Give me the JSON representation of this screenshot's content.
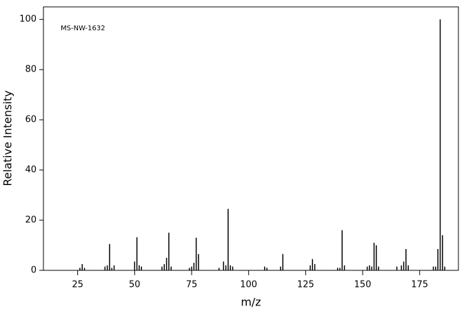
{
  "chart_data": {
    "type": "bar",
    "annotation": "MS-NW-1632",
    "xlabel": "m/z",
    "ylabel": "Relative Intensity",
    "x": [
      26,
      27,
      28,
      37,
      38,
      39,
      40,
      41,
      50,
      51,
      52,
      53,
      62,
      63,
      64,
      65,
      66,
      74,
      75,
      76,
      77,
      78,
      87,
      89,
      90,
      91,
      92,
      93,
      107,
      108,
      114,
      115,
      127,
      128,
      129,
      139,
      140,
      141,
      142,
      152,
      153,
      154,
      155,
      156,
      157,
      165,
      167,
      168,
      169,
      170,
      181,
      182,
      183,
      184,
      185,
      186
    ],
    "values": [
      1,
      2.5,
      1,
      1.5,
      2,
      10.5,
      1,
      2,
      3.5,
      13.2,
      2,
      1.5,
      1.5,
      2.5,
      5,
      15,
      1.5,
      1,
      1.5,
      3,
      13,
      6.5,
      1,
      3.5,
      2,
      24.5,
      2,
      1.5,
      1.5,
      1,
      1.5,
      6.5,
      2,
      4.5,
      2.5,
      1,
      1,
      16,
      2,
      1.5,
      2,
      1.5,
      11,
      10,
      1.5,
      1.5,
      2,
      3.5,
      8.5,
      2,
      1.5,
      1.5,
      8.5,
      100,
      14,
      1.5
    ],
    "color": "#000000",
    "xlim": [
      10,
      192
    ],
    "ylim": [
      0,
      105
    ],
    "xticks": [
      25,
      50,
      75,
      100,
      125,
      150,
      175
    ],
    "yticks": [
      0,
      20,
      40,
      60,
      80,
      100
    ]
  }
}
